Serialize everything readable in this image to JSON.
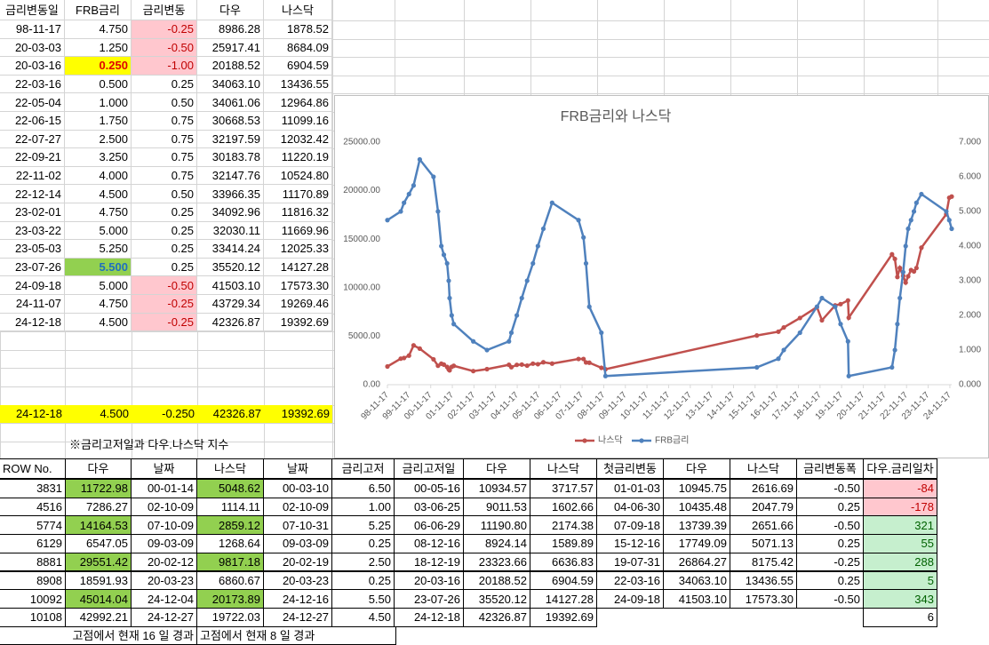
{
  "rate_table": {
    "header": [
      "금리변동일",
      "FRB금리",
      "금리변동",
      "다우",
      "나스닥"
    ],
    "rows": [
      [
        "98-11-17",
        "4.750",
        "-0.25",
        "8986.28",
        "1878.52"
      ],
      [
        "20-03-03",
        "1.250",
        "-0.50",
        "25917.41",
        "8684.09"
      ],
      [
        "20-03-16",
        "0.250",
        "-1.00",
        "20188.52",
        "6904.59"
      ],
      [
        "22-03-16",
        "0.500",
        "0.25",
        "34063.10",
        "13436.55"
      ],
      [
        "22-05-04",
        "1.000",
        "0.50",
        "34061.06",
        "12964.86"
      ],
      [
        "22-06-15",
        "1.750",
        "0.75",
        "30668.53",
        "11099.16"
      ],
      [
        "22-07-27",
        "2.500",
        "0.75",
        "32197.59",
        "12032.42"
      ],
      [
        "22-09-21",
        "3.250",
        "0.75",
        "30183.78",
        "11220.19"
      ],
      [
        "22-11-02",
        "4.000",
        "0.75",
        "32147.76",
        "10524.80"
      ],
      [
        "22-12-14",
        "4.500",
        "0.50",
        "33966.35",
        "11170.89"
      ],
      [
        "23-02-01",
        "4.750",
        "0.25",
        "34092.96",
        "11816.32"
      ],
      [
        "23-03-22",
        "5.000",
        "0.25",
        "32030.11",
        "11669.96"
      ],
      [
        "23-05-03",
        "5.250",
        "0.25",
        "33414.24",
        "12025.33"
      ],
      [
        "23-07-26",
        "5.500",
        "0.25",
        "35520.12",
        "14127.28"
      ],
      [
        "24-09-18",
        "5.000",
        "-0.50",
        "41503.10",
        "17573.30"
      ],
      [
        "24-11-07",
        "4.750",
        "-0.25",
        "43729.34",
        "19269.46"
      ],
      [
        "24-12-18",
        "4.500",
        "-0.25",
        "42326.87",
        "19392.69"
      ]
    ],
    "summary": [
      "24-12-18",
      "4.500",
      "-0.250",
      "42326.87",
      "19392.69"
    ]
  },
  "note": "※금리고저일과 다우.나스닥 지수",
  "chart_data": {
    "type": "line",
    "title": "FRB금리와 나스닥",
    "x": [
      "98-11-17",
      "99-06-30",
      "99-08-24",
      "99-11-16",
      "00-02-02",
      "00-05-16",
      "01-01-03",
      "01-03-20",
      "01-05-15",
      "01-06-27",
      "01-08-21",
      "01-09-17",
      "01-10-02",
      "01-11-06",
      "01-12-11",
      "02-11-06",
      "03-06-25",
      "04-06-30",
      "04-08-10",
      "04-11-10",
      "05-02-02",
      "05-05-03",
      "05-08-09",
      "05-11-01",
      "06-02-01",
      "06-06-29",
      "07-09-18",
      "07-12-11",
      "08-01-22",
      "08-03-18",
      "08-10-08",
      "08-12-16",
      "15-12-16",
      "16-12-14",
      "17-03-15",
      "17-12-13",
      "18-09-26",
      "18-12-19",
      "19-07-31",
      "19-10-30",
      "20-03-03",
      "20-03-16",
      "22-03-16",
      "22-05-04",
      "22-06-15",
      "22-07-27",
      "22-09-21",
      "22-11-02",
      "22-12-14",
      "23-02-01",
      "23-03-22",
      "23-05-03",
      "23-07-26",
      "24-09-18",
      "24-11-07",
      "24-12-18"
    ],
    "series": [
      {
        "name": "나스닥",
        "color": "#c0504d",
        "axis": "y",
        "values": [
          1878.52,
          2686,
          2750,
          3000,
          4051,
          3717.57,
          2616.69,
          1951,
          2166,
          2074,
          1831,
          1579,
          1480,
          1835,
          1946,
          1401,
          1602.66,
          2047.79,
          1808,
          2043,
          2075,
          1962,
          2171,
          2114,
          2310,
          2174.38,
          2651.66,
          2652,
          2292,
          2268,
          1740,
          1589.89,
          5071.13,
          5463,
          5900,
          6875,
          8000,
          6636.83,
          8175.42,
          8303,
          8684.09,
          6904.59,
          13436.55,
          12964.86,
          11099.16,
          12032.42,
          11220.19,
          10524.8,
          11170.89,
          11816.32,
          11669.96,
          12025.33,
          14127.28,
          17573.3,
          19269.46,
          19392.69
        ]
      },
      {
        "name": "FRB금리",
        "color": "#4f81bd",
        "axis": "y2",
        "values": [
          4.75,
          5.0,
          5.25,
          5.5,
          5.75,
          6.5,
          6.0,
          5.0,
          4.0,
          3.75,
          3.5,
          3.0,
          2.5,
          2.0,
          1.75,
          1.25,
          1.0,
          1.25,
          1.5,
          2.0,
          2.5,
          3.0,
          3.5,
          4.0,
          4.5,
          5.25,
          4.75,
          4.25,
          3.5,
          2.25,
          1.5,
          0.25,
          0.5,
          0.75,
          1.0,
          1.5,
          2.25,
          2.5,
          2.25,
          1.75,
          1.25,
          0.25,
          0.5,
          1.0,
          1.75,
          2.5,
          3.25,
          4.0,
          4.5,
          4.75,
          5.0,
          5.25,
          5.5,
          5.0,
          4.75,
          4.5
        ]
      }
    ],
    "xlim": [
      "98-11-17",
      "24-12-18"
    ],
    "xticks": [
      "98-11-17",
      "99-11-17",
      "00-11-17",
      "01-11-17",
      "02-11-17",
      "03-11-17",
      "04-11-17",
      "05-11-17",
      "06-11-17",
      "07-11-17",
      "08-11-17",
      "09-11-17",
      "10-11-17",
      "11-11-17",
      "12-11-17",
      "13-11-17",
      "14-11-17",
      "15-11-17",
      "16-11-17",
      "17-11-17",
      "18-11-17",
      "19-11-17",
      "20-11-17",
      "21-11-17",
      "22-11-17",
      "23-11-17",
      "24-11-17"
    ],
    "ylim": [
      0,
      25000
    ],
    "yticks": [
      {
        "value": 0,
        "label": "0.00"
      },
      {
        "value": 5000,
        "label": "5000.00"
      },
      {
        "value": 10000,
        "label": "10000.00"
      },
      {
        "value": 15000,
        "label": "15000.00"
      },
      {
        "value": 20000,
        "label": "20000.00"
      },
      {
        "value": 25000,
        "label": "25000.00"
      }
    ],
    "y2lim": [
      0,
      7
    ],
    "y2ticks": [
      {
        "value": 0,
        "label": "0.000"
      },
      {
        "value": 1,
        "label": "1.000"
      },
      {
        "value": 2,
        "label": "2.000"
      },
      {
        "value": 3,
        "label": "3.000"
      },
      {
        "value": 4,
        "label": "4.000"
      },
      {
        "value": 5,
        "label": "5.000"
      },
      {
        "value": 6,
        "label": "6.000"
      },
      {
        "value": 7,
        "label": "7.000"
      }
    ],
    "legend": "bottom"
  },
  "index_table": {
    "header": [
      "ROW No.",
      "다우",
      "날짜",
      "나스닥",
      "날짜",
      "금리고저",
      "금리고저일",
      "다우",
      "나스닥",
      "첫금리변동",
      "다우",
      "나스닥",
      "금리변동폭",
      "다우.금리일차"
    ],
    "rows": [
      [
        "3831",
        "11722.98",
        "00-01-14",
        "5048.62",
        "00-03-10",
        "6.50",
        "00-05-16",
        "10934.57",
        "3717.57",
        "01-01-03",
        "10945.75",
        "2616.69",
        "-0.50",
        "-84"
      ],
      [
        "4516",
        "7286.27",
        "02-10-09",
        "1114.11",
        "02-10-09",
        "1.00",
        "03-06-25",
        "9011.53",
        "1602.66",
        "04-06-30",
        "10435.48",
        "2047.79",
        "0.25",
        "-178"
      ],
      [
        "5774",
        "14164.53",
        "07-10-09",
        "2859.12",
        "07-10-31",
        "5.25",
        "06-06-29",
        "11190.80",
        "2174.38",
        "07-09-18",
        "13739.39",
        "2651.66",
        "-0.50",
        "321"
      ],
      [
        "6129",
        "6547.05",
        "09-03-09",
        "1268.64",
        "09-03-09",
        "0.25",
        "08-12-16",
        "8924.14",
        "1589.89",
        "15-12-16",
        "17749.09",
        "5071.13",
        "0.25",
        "55"
      ],
      [
        "8881",
        "29551.42",
        "20-02-12",
        "9817.18",
        "20-02-19",
        "2.50",
        "18-12-19",
        "23323.66",
        "6636.83",
        "19-07-31",
        "26864.27",
        "8175.42",
        "-0.25",
        "288"
      ],
      [
        "8908",
        "18591.93",
        "20-03-23",
        "6860.67",
        "20-03-23",
        "0.25",
        "20-03-16",
        "20188.52",
        "6904.59",
        "22-03-16",
        "34063.10",
        "13436.55",
        "0.25",
        "5"
      ],
      [
        "10092",
        "45014.04",
        "24-12-04",
        "20173.89",
        "24-12-16",
        "5.50",
        "23-07-26",
        "35520.12",
        "14127.28",
        "24-09-18",
        "41503.10",
        "17573.30",
        "-0.50",
        "343"
      ],
      [
        "10108",
        "42992.21",
        "24-12-27",
        "19722.03",
        "24-12-27",
        "4.50",
        "24-12-18",
        "42326.87",
        "19392.69",
        null,
        null,
        null,
        null,
        "6"
      ]
    ],
    "footer": [
      "고점에서 현재 16 일 경과",
      "고점에서 현재 8 일 경과"
    ]
  }
}
